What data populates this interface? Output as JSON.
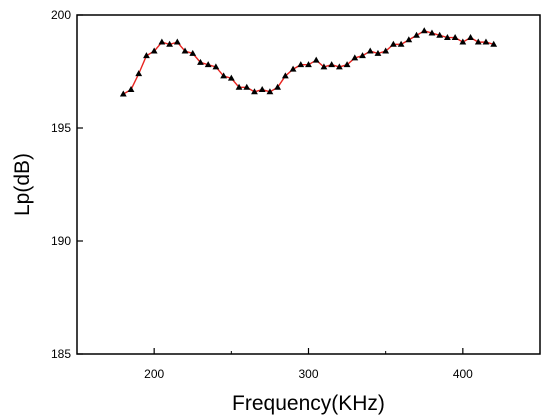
{
  "chart_data": {
    "type": "line",
    "xlabel": "Frequency(KHz)",
    "ylabel": "Lp(dB)",
    "xlim": [
      150,
      450
    ],
    "ylim": [
      185,
      200
    ],
    "x_ticks": [
      200,
      300,
      400
    ],
    "y_ticks": [
      185,
      190,
      195,
      200
    ],
    "x_tick_labels": [
      "200",
      "300",
      "400"
    ],
    "y_tick_labels": [
      "185",
      "190",
      "195",
      "200"
    ],
    "grid": false,
    "line_color": "#e8231f",
    "marker_color": "#000000",
    "marker": "triangle",
    "series": [
      {
        "x": [
          180,
          185,
          190,
          195,
          200,
          205,
          210,
          215,
          220,
          225,
          230,
          235,
          240,
          245,
          250,
          255,
          260,
          265,
          270,
          275,
          280,
          285,
          290,
          295,
          300,
          305,
          310,
          315,
          320,
          325,
          330,
          335,
          340,
          345,
          350,
          355,
          360,
          365,
          370,
          375,
          380,
          385,
          390,
          395,
          400,
          405,
          410,
          415,
          420
        ],
        "y": [
          196.5,
          196.7,
          197.4,
          198.2,
          198.4,
          198.8,
          198.7,
          198.8,
          198.4,
          198.3,
          197.9,
          197.8,
          197.7,
          197.3,
          197.2,
          196.8,
          196.8,
          196.6,
          196.7,
          196.6,
          196.8,
          197.3,
          197.6,
          197.8,
          197.8,
          198.0,
          197.7,
          197.8,
          197.7,
          197.8,
          198.1,
          198.2,
          198.4,
          198.3,
          198.4,
          198.7,
          198.7,
          198.9,
          199.1,
          199.3,
          199.2,
          199.1,
          199.0,
          199.0,
          198.8,
          199.0,
          198.8,
          198.8,
          198.7
        ]
      }
    ]
  }
}
